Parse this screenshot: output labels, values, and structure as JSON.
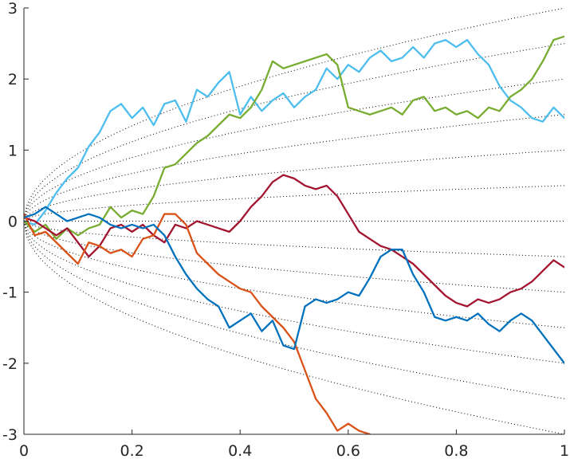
{
  "chart_data": {
    "type": "line",
    "title": "",
    "xlabel": "",
    "ylabel": "",
    "xlim": [
      0,
      1
    ],
    "ylim": [
      -3,
      3
    ],
    "grid": false,
    "legend": "none",
    "x_ticks": [
      0,
      0.2,
      0.4,
      0.6,
      0.8,
      1
    ],
    "x_tick_labels": [
      "0",
      "0.2",
      "0.4",
      "0.6",
      "0.8",
      "1"
    ],
    "y_ticks": [
      -3,
      -2,
      -1,
      0,
      1,
      2,
      3
    ],
    "y_tick_labels": [
      "-3",
      "-2",
      "-1",
      "0",
      "1",
      "2",
      "3"
    ],
    "guide_curves": {
      "style": "dotted",
      "color": "#000000",
      "form": "y = k * sqrt(x)",
      "k": [
        -3,
        -2.5,
        -2,
        -1.5,
        -1,
        -0.5,
        0,
        0.5,
        1,
        1.5,
        2,
        2.5,
        3
      ]
    },
    "series": [
      {
        "color": "#4DBEEE",
        "points": [
          [
            0,
            0.0
          ],
          [
            0.02,
            -0.05
          ],
          [
            0.04,
            0.15
          ],
          [
            0.06,
            0.4
          ],
          [
            0.08,
            0.6
          ],
          [
            0.1,
            0.75
          ],
          [
            0.12,
            1.05
          ],
          [
            0.14,
            1.25
          ],
          [
            0.16,
            1.55
          ],
          [
            0.18,
            1.65
          ],
          [
            0.2,
            1.45
          ],
          [
            0.22,
            1.6
          ],
          [
            0.24,
            1.35
          ],
          [
            0.26,
            1.65
          ],
          [
            0.28,
            1.7
          ],
          [
            0.3,
            1.4
          ],
          [
            0.32,
            1.85
          ],
          [
            0.34,
            1.75
          ],
          [
            0.36,
            1.95
          ],
          [
            0.38,
            2.1
          ],
          [
            0.4,
            1.5
          ],
          [
            0.42,
            1.75
          ],
          [
            0.44,
            1.55
          ],
          [
            0.46,
            1.7
          ],
          [
            0.48,
            1.8
          ],
          [
            0.5,
            1.6
          ],
          [
            0.52,
            1.75
          ],
          [
            0.54,
            1.85
          ],
          [
            0.56,
            2.15
          ],
          [
            0.58,
            2.0
          ],
          [
            0.6,
            2.2
          ],
          [
            0.62,
            2.1
          ],
          [
            0.64,
            2.3
          ],
          [
            0.66,
            2.4
          ],
          [
            0.68,
            2.25
          ],
          [
            0.7,
            2.3
          ],
          [
            0.72,
            2.45
          ],
          [
            0.74,
            2.3
          ],
          [
            0.76,
            2.5
          ],
          [
            0.78,
            2.55
          ],
          [
            0.8,
            2.45
          ],
          [
            0.82,
            2.55
          ],
          [
            0.84,
            2.35
          ],
          [
            0.86,
            2.2
          ],
          [
            0.88,
            1.9
          ],
          [
            0.9,
            1.7
          ],
          [
            0.92,
            1.6
          ],
          [
            0.94,
            1.45
          ],
          [
            0.96,
            1.4
          ],
          [
            0.98,
            1.6
          ],
          [
            1.0,
            1.45
          ]
        ]
      },
      {
        "color": "#77AC30",
        "points": [
          [
            0,
            0.0
          ],
          [
            0.02,
            -0.15
          ],
          [
            0.04,
            -0.05
          ],
          [
            0.06,
            -0.25
          ],
          [
            0.08,
            -0.1
          ],
          [
            0.1,
            -0.2
          ],
          [
            0.12,
            -0.1
          ],
          [
            0.14,
            -0.05
          ],
          [
            0.16,
            0.2
          ],
          [
            0.18,
            0.05
          ],
          [
            0.2,
            0.15
          ],
          [
            0.22,
            0.1
          ],
          [
            0.24,
            0.35
          ],
          [
            0.26,
            0.75
          ],
          [
            0.28,
            0.8
          ],
          [
            0.3,
            0.95
          ],
          [
            0.32,
            1.1
          ],
          [
            0.34,
            1.2
          ],
          [
            0.36,
            1.35
          ],
          [
            0.38,
            1.5
          ],
          [
            0.4,
            1.45
          ],
          [
            0.42,
            1.6
          ],
          [
            0.44,
            1.85
          ],
          [
            0.46,
            2.25
          ],
          [
            0.48,
            2.15
          ],
          [
            0.5,
            2.2
          ],
          [
            0.52,
            2.25
          ],
          [
            0.54,
            2.3
          ],
          [
            0.56,
            2.35
          ],
          [
            0.58,
            2.2
          ],
          [
            0.6,
            1.6
          ],
          [
            0.62,
            1.55
          ],
          [
            0.64,
            1.5
          ],
          [
            0.66,
            1.55
          ],
          [
            0.68,
            1.6
          ],
          [
            0.7,
            1.5
          ],
          [
            0.72,
            1.7
          ],
          [
            0.74,
            1.75
          ],
          [
            0.76,
            1.55
          ],
          [
            0.78,
            1.6
          ],
          [
            0.8,
            1.5
          ],
          [
            0.82,
            1.55
          ],
          [
            0.84,
            1.45
          ],
          [
            0.86,
            1.6
          ],
          [
            0.88,
            1.55
          ],
          [
            0.9,
            1.75
          ],
          [
            0.92,
            1.85
          ],
          [
            0.94,
            2.0
          ],
          [
            0.96,
            2.25
          ],
          [
            0.98,
            2.55
          ],
          [
            1.0,
            2.6
          ]
        ]
      },
      {
        "color": "#A2142F",
        "points": [
          [
            0,
            0.05
          ],
          [
            0.02,
            0.0
          ],
          [
            0.04,
            -0.1
          ],
          [
            0.06,
            -0.2
          ],
          [
            0.08,
            -0.1
          ],
          [
            0.1,
            -0.3
          ],
          [
            0.12,
            -0.5
          ],
          [
            0.14,
            -0.35
          ],
          [
            0.16,
            -0.1
          ],
          [
            0.18,
            -0.05
          ],
          [
            0.2,
            -0.15
          ],
          [
            0.22,
            -0.05
          ],
          [
            0.24,
            -0.2
          ],
          [
            0.26,
            -0.3
          ],
          [
            0.28,
            -0.05
          ],
          [
            0.3,
            -0.1
          ],
          [
            0.32,
            0.0
          ],
          [
            0.34,
            -0.05
          ],
          [
            0.36,
            -0.1
          ],
          [
            0.38,
            -0.15
          ],
          [
            0.4,
            0.0
          ],
          [
            0.42,
            0.2
          ],
          [
            0.44,
            0.35
          ],
          [
            0.46,
            0.55
          ],
          [
            0.48,
            0.65
          ],
          [
            0.5,
            0.6
          ],
          [
            0.52,
            0.5
          ],
          [
            0.54,
            0.45
          ],
          [
            0.56,
            0.5
          ],
          [
            0.58,
            0.35
          ],
          [
            0.6,
            0.1
          ],
          [
            0.62,
            -0.15
          ],
          [
            0.64,
            -0.25
          ],
          [
            0.66,
            -0.35
          ],
          [
            0.68,
            -0.4
          ],
          [
            0.7,
            -0.5
          ],
          [
            0.72,
            -0.6
          ],
          [
            0.74,
            -0.75
          ],
          [
            0.76,
            -0.9
          ],
          [
            0.78,
            -1.05
          ],
          [
            0.8,
            -1.15
          ],
          [
            0.82,
            -1.2
          ],
          [
            0.84,
            -1.1
          ],
          [
            0.86,
            -1.15
          ],
          [
            0.88,
            -1.1
          ],
          [
            0.9,
            -1.0
          ],
          [
            0.92,
            -0.95
          ],
          [
            0.94,
            -0.85
          ],
          [
            0.96,
            -0.7
          ],
          [
            0.98,
            -0.55
          ],
          [
            1.0,
            -0.65
          ]
        ]
      },
      {
        "color": "#D95319",
        "points": [
          [
            0,
            0.1
          ],
          [
            0.02,
            -0.2
          ],
          [
            0.04,
            -0.15
          ],
          [
            0.06,
            -0.3
          ],
          [
            0.08,
            -0.45
          ],
          [
            0.1,
            -0.6
          ],
          [
            0.12,
            -0.3
          ],
          [
            0.14,
            -0.35
          ],
          [
            0.16,
            -0.45
          ],
          [
            0.18,
            -0.4
          ],
          [
            0.2,
            -0.5
          ],
          [
            0.22,
            -0.25
          ],
          [
            0.24,
            -0.2
          ],
          [
            0.26,
            0.1
          ],
          [
            0.28,
            0.1
          ],
          [
            0.3,
            -0.05
          ],
          [
            0.32,
            -0.45
          ],
          [
            0.34,
            -0.6
          ],
          [
            0.36,
            -0.75
          ],
          [
            0.38,
            -0.85
          ],
          [
            0.4,
            -0.95
          ],
          [
            0.42,
            -1.0
          ],
          [
            0.44,
            -1.2
          ],
          [
            0.46,
            -1.35
          ],
          [
            0.48,
            -1.5
          ],
          [
            0.5,
            -1.7
          ],
          [
            0.52,
            -2.1
          ],
          [
            0.54,
            -2.5
          ],
          [
            0.56,
            -2.7
          ],
          [
            0.58,
            -2.95
          ],
          [
            0.6,
            -2.85
          ],
          [
            0.62,
            -2.95
          ],
          [
            0.64,
            -3.0
          ]
        ]
      },
      {
        "color": "#0072BD",
        "points": [
          [
            0,
            0.05
          ],
          [
            0.02,
            0.1
          ],
          [
            0.04,
            0.2
          ],
          [
            0.06,
            0.1
          ],
          [
            0.08,
            0.0
          ],
          [
            0.1,
            0.05
          ],
          [
            0.12,
            0.1
          ],
          [
            0.14,
            0.05
          ],
          [
            0.16,
            -0.05
          ],
          [
            0.18,
            -0.1
          ],
          [
            0.2,
            -0.05
          ],
          [
            0.22,
            -0.1
          ],
          [
            0.24,
            -0.05
          ],
          [
            0.26,
            -0.2
          ],
          [
            0.28,
            -0.5
          ],
          [
            0.3,
            -0.75
          ],
          [
            0.32,
            -0.95
          ],
          [
            0.34,
            -1.1
          ],
          [
            0.36,
            -1.2
          ],
          [
            0.38,
            -1.5
          ],
          [
            0.4,
            -1.4
          ],
          [
            0.42,
            -1.3
          ],
          [
            0.44,
            -1.55
          ],
          [
            0.46,
            -1.4
          ],
          [
            0.48,
            -1.75
          ],
          [
            0.5,
            -1.8
          ],
          [
            0.52,
            -1.2
          ],
          [
            0.54,
            -1.1
          ],
          [
            0.56,
            -1.15
          ],
          [
            0.58,
            -1.1
          ],
          [
            0.6,
            -1.0
          ],
          [
            0.62,
            -1.05
          ],
          [
            0.64,
            -0.8
          ],
          [
            0.66,
            -0.5
          ],
          [
            0.68,
            -0.4
          ],
          [
            0.7,
            -0.4
          ],
          [
            0.72,
            -0.75
          ],
          [
            0.74,
            -1.0
          ],
          [
            0.76,
            -1.35
          ],
          [
            0.78,
            -1.4
          ],
          [
            0.8,
            -1.35
          ],
          [
            0.82,
            -1.4
          ],
          [
            0.84,
            -1.3
          ],
          [
            0.86,
            -1.45
          ],
          [
            0.88,
            -1.55
          ],
          [
            0.9,
            -1.4
          ],
          [
            0.92,
            -1.3
          ],
          [
            0.94,
            -1.4
          ],
          [
            0.96,
            -1.6
          ],
          [
            0.98,
            -1.8
          ],
          [
            1.0,
            -2.0
          ]
        ]
      }
    ]
  }
}
